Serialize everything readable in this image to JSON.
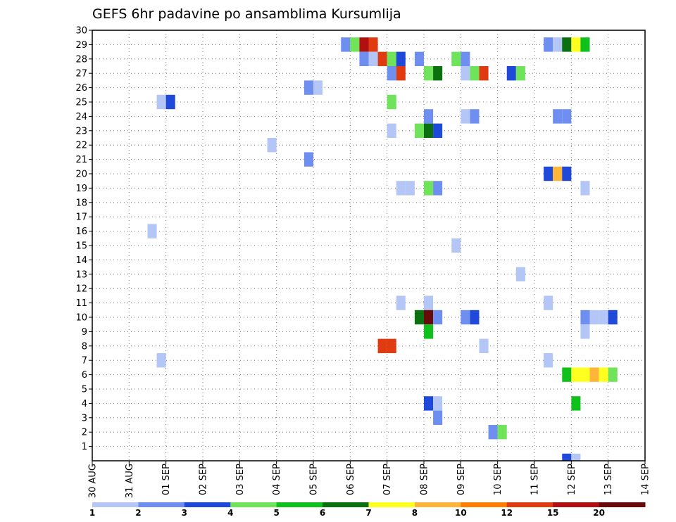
{
  "chart_data": {
    "type": "heatmap",
    "title": "GEFS 6hr padavine po ansamblima Kursumlija",
    "x_ticks": [
      "30 AUG",
      "31 AUG",
      "01 SEP",
      "02 SEP",
      "03 SEP",
      "04 SEP",
      "05 SEP",
      "06 SEP",
      "07 SEP",
      "08 SEP",
      "09 SEP",
      "10 SEP",
      "11 SEP",
      "12 SEP",
      "13 SEP",
      "14 SEP"
    ],
    "y_ticks": [
      "1",
      "2",
      "3",
      "4",
      "5",
      "6",
      "7",
      "8",
      "9",
      "10",
      "11",
      "12",
      "13",
      "14",
      "15",
      "16",
      "17",
      "18",
      "19",
      "20",
      "21",
      "22",
      "23",
      "24",
      "25",
      "26",
      "27",
      "28",
      "29",
      "30"
    ],
    "x_range_days": [
      0,
      15
    ],
    "y_range": [
      0,
      30
    ],
    "time_step_hours": 6,
    "grid": "dotted",
    "colorbar": {
      "position": "bottom",
      "labels": [
        "1",
        "2",
        "3",
        "4",
        "5",
        "6",
        "7",
        "8",
        "10",
        "12",
        "15",
        "20"
      ],
      "colors": [
        "#b3c6f5",
        "#6f8ff0",
        "#1f4ad9",
        "#6fe45a",
        "#10c01c",
        "#0a7010",
        "#ffff20",
        "#ffb43a",
        "#ff7f00",
        "#e03a10",
        "#b01010",
        "#680a0a"
      ]
    },
    "cells": [
      {
        "t": "2025-08-31T18",
        "m": 7,
        "v": 1
      },
      {
        "t": "2025-08-31T18",
        "m": 25,
        "v": 1
      },
      {
        "t": "2025-09-01T00",
        "m": 25,
        "v": 3
      },
      {
        "t": "2025-08-31T12",
        "m": 16,
        "v": 1
      },
      {
        "t": "2025-09-03T18",
        "m": 22,
        "v": 1
      },
      {
        "t": "2025-09-04T18",
        "m": 21,
        "v": 2
      },
      {
        "t": "2025-09-04T18",
        "m": 26,
        "v": 2
      },
      {
        "t": "2025-09-05T00",
        "m": 26,
        "v": 1
      },
      {
        "t": "2025-09-05T18",
        "m": 29,
        "v": 2
      },
      {
        "t": "2025-09-06T00",
        "m": 29,
        "v": 4
      },
      {
        "t": "2025-09-06T06",
        "m": 29,
        "v": 15
      },
      {
        "t": "2025-09-06T12",
        "m": 29,
        "v": 12
      },
      {
        "t": "2025-09-06T06",
        "m": 28,
        "v": 2
      },
      {
        "t": "2025-09-06T12",
        "m": 28,
        "v": 1
      },
      {
        "t": "2025-09-06T18",
        "m": 28,
        "v": 12
      },
      {
        "t": "2025-09-07T00",
        "m": 28,
        "v": 4
      },
      {
        "t": "2025-09-07T06",
        "m": 28,
        "v": 3
      },
      {
        "t": "2025-09-06T18",
        "m": 8,
        "v": 12
      },
      {
        "t": "2025-09-07T00",
        "m": 8,
        "v": 12
      },
      {
        "t": "2025-09-07T00",
        "m": 27,
        "v": 2
      },
      {
        "t": "2025-09-07T06",
        "m": 27,
        "v": 12
      },
      {
        "t": "2025-09-07T00",
        "m": 25,
        "v": 4
      },
      {
        "t": "2025-09-07T00",
        "m": 23,
        "v": 1
      },
      {
        "t": "2025-09-07T06",
        "m": 19,
        "v": 1
      },
      {
        "t": "2025-09-07T12",
        "m": 19,
        "v": 1
      },
      {
        "t": "2025-09-07T06",
        "m": 11,
        "v": 1
      },
      {
        "t": "2025-09-07T18",
        "m": 28,
        "v": 2
      },
      {
        "t": "2025-09-08T00",
        "m": 27,
        "v": 4
      },
      {
        "t": "2025-09-08T06",
        "m": 27,
        "v": 6
      },
      {
        "t": "2025-09-07T18",
        "m": 23,
        "v": 4
      },
      {
        "t": "2025-09-08T00",
        "m": 23,
        "v": 6
      },
      {
        "t": "2025-09-08T06",
        "m": 23,
        "v": 3
      },
      {
        "t": "2025-09-08T00",
        "m": 24,
        "v": 2
      },
      {
        "t": "2025-09-08T00",
        "m": 19,
        "v": 4
      },
      {
        "t": "2025-09-08T06",
        "m": 19,
        "v": 2
      },
      {
        "t": "2025-09-08T00",
        "m": 11,
        "v": 1
      },
      {
        "t": "2025-09-07T18",
        "m": 10,
        "v": 6
      },
      {
        "t": "2025-09-08T00",
        "m": 10,
        "v": 20
      },
      {
        "t": "2025-09-08T06",
        "m": 10,
        "v": 2
      },
      {
        "t": "2025-09-08T00",
        "m": 9,
        "v": 5
      },
      {
        "t": "2025-09-08T00",
        "m": 4,
        "v": 3
      },
      {
        "t": "2025-09-08T06",
        "m": 4,
        "v": 1
      },
      {
        "t": "2025-09-08T06",
        "m": 3,
        "v": 2
      },
      {
        "t": "2025-09-08T18",
        "m": 28,
        "v": 4
      },
      {
        "t": "2025-09-09T00",
        "m": 28,
        "v": 2
      },
      {
        "t": "2025-09-08T18",
        "m": 15,
        "v": 1
      },
      {
        "t": "2025-09-09T00",
        "m": 27,
        "v": 1
      },
      {
        "t": "2025-09-09T06",
        "m": 27,
        "v": 4
      },
      {
        "t": "2025-09-09T12",
        "m": 27,
        "v": 12
      },
      {
        "t": "2025-09-09T00",
        "m": 24,
        "v": 1
      },
      {
        "t": "2025-09-09T06",
        "m": 24,
        "v": 2
      },
      {
        "t": "2025-09-09T00",
        "m": 10,
        "v": 2
      },
      {
        "t": "2025-09-09T06",
        "m": 10,
        "v": 3
      },
      {
        "t": "2025-09-09T12",
        "m": 8,
        "v": 1
      },
      {
        "t": "2025-09-09T18",
        "m": 2,
        "v": 2
      },
      {
        "t": "2025-09-10T00",
        "m": 2,
        "v": 4
      },
      {
        "t": "2025-09-10T06",
        "m": 27,
        "v": 3
      },
      {
        "t": "2025-09-10T12",
        "m": 27,
        "v": 4
      },
      {
        "t": "2025-09-10T12",
        "m": 13,
        "v": 1
      },
      {
        "t": "2025-09-11T06",
        "m": 29,
        "v": 2
      },
      {
        "t": "2025-09-11T12",
        "m": 29,
        "v": 1
      },
      {
        "t": "2025-09-11T18",
        "m": 29,
        "v": 6
      },
      {
        "t": "2025-09-12T00",
        "m": 29,
        "v": 7
      },
      {
        "t": "2025-09-12T06",
        "m": 29,
        "v": 5
      },
      {
        "t": "2025-09-11T12",
        "m": 24,
        "v": 2
      },
      {
        "t": "2025-09-11T18",
        "m": 24,
        "v": 2
      },
      {
        "t": "2025-09-11T06",
        "m": 20,
        "v": 3
      },
      {
        "t": "2025-09-11T12",
        "m": 20,
        "v": 8
      },
      {
        "t": "2025-09-11T18",
        "m": 20,
        "v": 3
      },
      {
        "t": "2025-09-12T06",
        "m": 19,
        "v": 1
      },
      {
        "t": "2025-09-11T06",
        "m": 11,
        "v": 1
      },
      {
        "t": "2025-09-11T06",
        "m": 7,
        "v": 1
      },
      {
        "t": "2025-09-12T06",
        "m": 10,
        "v": 2
      },
      {
        "t": "2025-09-12T06",
        "m": 9,
        "v": 1
      },
      {
        "t": "2025-09-12T12",
        "m": 10,
        "v": 1
      },
      {
        "t": "2025-09-12T18",
        "m": 10,
        "v": 1
      },
      {
        "t": "2025-09-13T00",
        "m": 10,
        "v": 3
      },
      {
        "t": "2025-09-11T18",
        "m": 6,
        "v": 5
      },
      {
        "t": "2025-09-12T00",
        "m": 6,
        "v": 7
      },
      {
        "t": "2025-09-12T06",
        "m": 6,
        "v": 7
      },
      {
        "t": "2025-09-12T12",
        "m": 6,
        "v": 8
      },
      {
        "t": "2025-09-12T18",
        "m": 6,
        "v": 7
      },
      {
        "t": "2025-09-13T00",
        "m": 6,
        "v": 4
      },
      {
        "t": "2025-09-12T00",
        "m": 4,
        "v": 5
      },
      {
        "t": "2025-09-11T18",
        "m": 0,
        "v": 3
      },
      {
        "t": "2025-09-12T00",
        "m": 0,
        "v": 1
      }
    ]
  }
}
